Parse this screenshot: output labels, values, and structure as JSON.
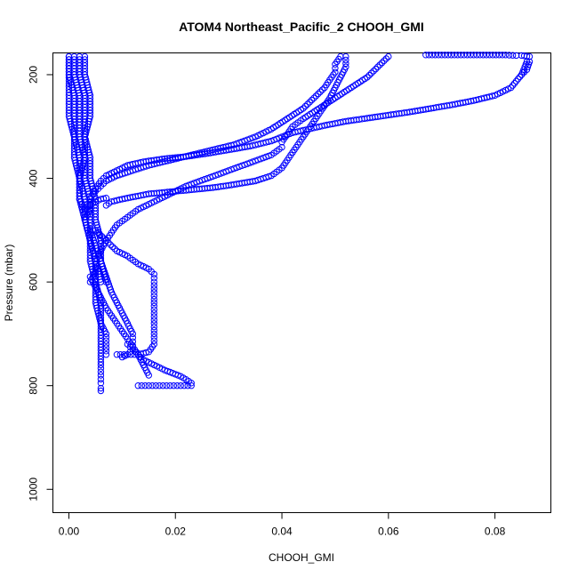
{
  "chart_data": {
    "type": "scatter",
    "title": "ATOM4 Northeast_Pacific_2 CHOOH_GMI",
    "xlabel": "CHOOH_GMI",
    "ylabel": "Pressure (mbar)",
    "xlim": [
      -0.003,
      0.0905
    ],
    "ylim": [
      1045,
      158
    ],
    "y_reversed": true,
    "grid": false,
    "legend": "none",
    "marker": "open-circle",
    "color": "#0000ff",
    "x_ticks": [
      0.0,
      0.02,
      0.04,
      0.06,
      0.08
    ],
    "x_tick_labels": [
      "0.00",
      "0.02",
      "0.04",
      "0.06",
      "0.08"
    ],
    "y_ticks": [
      200,
      400,
      600,
      800,
      1000
    ],
    "y_tick_labels": [
      "200",
      "400",
      "600",
      "800",
      "1000"
    ],
    "series": [
      {
        "profile": "high-value descent",
        "x": [
          0.086,
          0.085,
          0.083,
          0.08,
          0.076,
          0.072,
          0.068,
          0.064,
          0.06,
          0.056,
          0.052,
          0.048,
          0.045,
          0.042,
          0.04,
          0.038,
          0.034,
          0.03,
          0.026,
          0.022,
          0.018,
          0.014,
          0.011,
          0.009,
          0.007,
          0.006,
          0.005,
          0.004,
          0.004,
          0.003
        ],
        "y": [
          175,
          200,
          225,
          240,
          250,
          258,
          265,
          272,
          278,
          284,
          290,
          298,
          305,
          312,
          320,
          328,
          338,
          345,
          352,
          358,
          362,
          368,
          375,
          385,
          395,
          405,
          420,
          440,
          460,
          480
        ]
      },
      {
        "profile": "upper-right hook",
        "x": [
          0.067,
          0.07,
          0.073,
          0.076,
          0.079,
          0.082,
          0.084,
          0.085,
          0.0865,
          0.0865,
          0.086,
          0.085
        ],
        "y": [
          162,
          162,
          162,
          162,
          162,
          162,
          163,
          163,
          165,
          175,
          190,
          200
        ]
      },
      {
        "profile": "mid-level bulge",
        "x": [
          0.06,
          0.058,
          0.056,
          0.053,
          0.05,
          0.047,
          0.044,
          0.042,
          0.041,
          0.04,
          0.04,
          0.038,
          0.034,
          0.03,
          0.026,
          0.022,
          0.019,
          0.016,
          0.013,
          0.011,
          0.009,
          0.008,
          0.007,
          0.006,
          0.005,
          0.005,
          0.004
        ],
        "y": [
          165,
          185,
          205,
          225,
          245,
          265,
          285,
          300,
          315,
          330,
          340,
          355,
          370,
          385,
          400,
          415,
          430,
          445,
          460,
          475,
          490,
          505,
          520,
          540,
          560,
          580,
          600
        ]
      },
      {
        "profile": "straight branch",
        "x": [
          0.052,
          0.052,
          0.051,
          0.05,
          0.049,
          0.048,
          0.047,
          0.046,
          0.045,
          0.044,
          0.043,
          0.042,
          0.041,
          0.04,
          0.038,
          0.035,
          0.031,
          0.027,
          0.023,
          0.019,
          0.015,
          0.012,
          0.01,
          0.008,
          0.007
        ],
        "y": [
          165,
          185,
          205,
          225,
          245,
          260,
          275,
          290,
          305,
          320,
          335,
          350,
          365,
          380,
          395,
          405,
          412,
          418,
          422,
          426,
          430,
          436,
          440,
          445,
          452
        ]
      },
      {
        "profile": "upper-left branch",
        "x": [
          0.051,
          0.05,
          0.05,
          0.049,
          0.048,
          0.046,
          0.044,
          0.041,
          0.038,
          0.035,
          0.031,
          0.027,
          0.023,
          0.019,
          0.015,
          0.012,
          0.009,
          0.007,
          0.006,
          0.005
        ],
        "y": [
          165,
          180,
          195,
          210,
          225,
          245,
          265,
          285,
          305,
          320,
          335,
          345,
          355,
          365,
          375,
          385,
          395,
          405,
          415,
          425
        ]
      },
      {
        "profile": "bottom plateau 0.013-0.023",
        "x": [
          0.013,
          0.015,
          0.017,
          0.019,
          0.021,
          0.023,
          0.023,
          0.022,
          0.021,
          0.02,
          0.018,
          0.016,
          0.014,
          0.013,
          0.012,
          0.011
        ],
        "y": [
          800,
          800,
          800,
          800,
          800,
          800,
          795,
          788,
          782,
          778,
          770,
          760,
          750,
          740,
          730,
          720
        ]
      },
      {
        "profile": "curve 0.016 at 580-740",
        "x": [
          0.005,
          0.007,
          0.009,
          0.011,
          0.013,
          0.015,
          0.016,
          0.016,
          0.016,
          0.016,
          0.016,
          0.016,
          0.016,
          0.016,
          0.015,
          0.013,
          0.011,
          0.009
        ],
        "y": [
          500,
          520,
          540,
          550,
          565,
          575,
          585,
          600,
          620,
          640,
          660,
          680,
          700,
          720,
          735,
          740,
          740,
          740
        ]
      },
      {
        "profile": "curve 0.012 at 700",
        "x": [
          0.004,
          0.005,
          0.006,
          0.007,
          0.008,
          0.009,
          0.01,
          0.011,
          0.012,
          0.012,
          0.012,
          0.011,
          0.01
        ],
        "y": [
          500,
          530,
          560,
          590,
          620,
          640,
          660,
          680,
          700,
          715,
          730,
          740,
          745
        ]
      },
      {
        "profile": "lower-left ribbon",
        "x": [
          0.004,
          0.005,
          0.006,
          0.007,
          0.008,
          0.009,
          0.01,
          0.011,
          0.012,
          0.013,
          0.014,
          0.015
        ],
        "y": [
          590,
          610,
          630,
          650,
          665,
          680,
          695,
          710,
          725,
          740,
          760,
          780
        ]
      },
      {
        "profile": "near-zero column A",
        "x": [
          0.0,
          0.0,
          0.001,
          0.001,
          0.001,
          0.002,
          0.002,
          0.003,
          0.003,
          0.004,
          0.004,
          0.005,
          0.005,
          0.006,
          0.006,
          0.006,
          0.006,
          0.006,
          0.006,
          0.006
        ],
        "y": [
          165,
          200,
          240,
          280,
          320,
          360,
          400,
          440,
          480,
          520,
          560,
          600,
          640,
          680,
          720,
          760,
          780,
          795,
          805,
          810
        ]
      },
      {
        "profile": "near-zero column B",
        "x": [
          0.001,
          0.001,
          0.002,
          0.002,
          0.002,
          0.003,
          0.003,
          0.004,
          0.004,
          0.004,
          0.005,
          0.005,
          0.006,
          0.006,
          0.007,
          0.007,
          0.007
        ],
        "y": [
          165,
          200,
          240,
          280,
          320,
          360,
          400,
          440,
          480,
          520,
          560,
          600,
          640,
          680,
          700,
          720,
          740
        ]
      },
      {
        "profile": "near-zero column C",
        "x": [
          0.002,
          0.002,
          0.003,
          0.003,
          0.003,
          0.004,
          0.004,
          0.005,
          0.005,
          0.006,
          0.006,
          0.007
        ],
        "y": [
          165,
          200,
          240,
          280,
          320,
          360,
          400,
          440,
          480,
          520,
          560,
          600
        ]
      },
      {
        "profile": "near-zero column D",
        "x": [
          0.0,
          0.0,
          0.0,
          0.0,
          0.001,
          0.001,
          0.002,
          0.002,
          0.003,
          0.004,
          0.006,
          0.007
        ],
        "y": [
          165,
          200,
          240,
          280,
          320,
          360,
          400,
          440,
          460,
          450,
          440,
          438
        ]
      },
      {
        "profile": "near-zero column E",
        "x": [
          0.003,
          0.003,
          0.004,
          0.004,
          0.003,
          0.003,
          0.002,
          0.002,
          0.003,
          0.004,
          0.005,
          0.006
        ],
        "y": [
          165,
          200,
          240,
          280,
          320,
          360,
          400,
          440,
          480,
          520,
          560,
          600
        ]
      }
    ]
  }
}
